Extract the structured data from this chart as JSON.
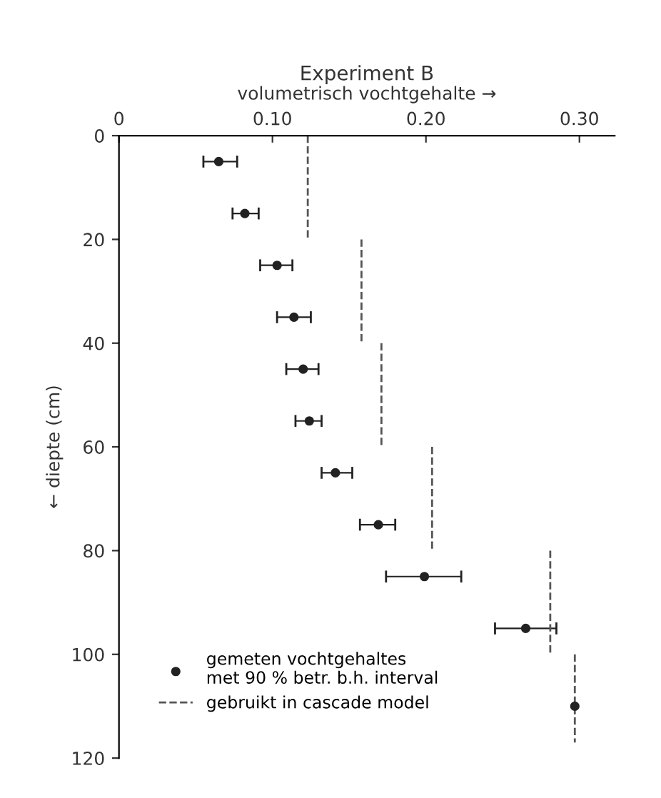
{
  "chart_data": {
    "type": "scatter",
    "title": "Experiment B",
    "xlabel": "volumetrisch vochtgehalte →",
    "ylabel": "← diepte (cm)",
    "xlim": [
      0,
      0.323
    ],
    "xticks": [
      0,
      {
        "value": 0.1,
        "label": "0.10"
      },
      {
        "value": 0.2,
        "label": "0.20"
      },
      {
        "value": 0.3,
        "label": "0.30"
      }
    ],
    "ylim": [
      120,
      0
    ],
    "yticks": [
      0,
      20,
      40,
      60,
      80,
      100,
      120
    ],
    "grid": false,
    "legend": "bottom left",
    "series": [
      {
        "name": "gemeten vochtgehaltes\nmet 90 % betr. b.h. interval",
        "color": "#222222",
        "marker": "circle",
        "x": [
          0.065,
          0.082,
          0.103,
          0.114,
          0.12,
          0.124,
          0.141,
          0.169,
          0.199,
          0.265,
          0.297
        ],
        "values": [
          5,
          15,
          25,
          35,
          45,
          55,
          65,
          75,
          85,
          95,
          110
        ],
        "xerrors": [
          [
            0.055,
            0.077
          ],
          [
            0.074,
            0.091
          ],
          [
            0.092,
            0.113
          ],
          [
            0.103,
            0.125
          ],
          [
            0.109,
            0.13
          ],
          [
            0.115,
            0.132
          ],
          [
            0.132,
            0.152
          ],
          [
            0.157,
            0.18
          ],
          [
            0.174,
            0.223
          ],
          [
            0.245,
            0.285
          ],
          null
        ]
      },
      {
        "name": "gebruikt in cascade model",
        "type": "line",
        "color": "#555555",
        "line_style": "dashed",
        "marker": "none",
        "x": [
          0.123,
          0.123,
          null,
          0.158,
          0.158,
          null,
          0.171,
          0.171,
          null,
          0.204,
          0.204,
          null,
          0.281,
          0.281,
          null,
          0.297,
          0.297
        ],
        "values": [
          0,
          20,
          null,
          20,
          40,
          null,
          40,
          60,
          null,
          60,
          80,
          null,
          80,
          100,
          null,
          100,
          117
        ]
      }
    ]
  }
}
